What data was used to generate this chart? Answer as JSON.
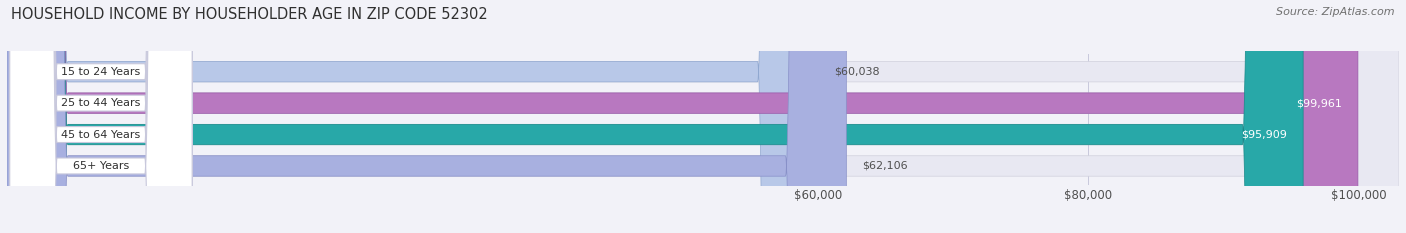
{
  "title": "HOUSEHOLD INCOME BY HOUSEHOLDER AGE IN ZIP CODE 52302",
  "source": "Source: ZipAtlas.com",
  "categories": [
    "15 to 24 Years",
    "25 to 44 Years",
    "45 to 64 Years",
    "65+ Years"
  ],
  "values": [
    60038,
    99961,
    95909,
    62106
  ],
  "bar_colors": [
    "#b8c8e8",
    "#b878c0",
    "#28a8a8",
    "#a8b0e0"
  ],
  "bar_edge_colors": [
    "#90a8d0",
    "#9858a8",
    "#188888",
    "#8890c8"
  ],
  "value_labels": [
    "$60,038",
    "$99,961",
    "$95,909",
    "$62,106"
  ],
  "xlim_min": 0,
  "xlim_max": 103000,
  "xticks": [
    60000,
    80000,
    100000
  ],
  "xtick_labels": [
    "$60,000",
    "$80,000",
    "$100,000"
  ],
  "background_color": "#f2f2f8",
  "bar_bg_color": "#e8e8f2",
  "bar_bg_edge_color": "#d0d0dc",
  "title_fontsize": 10.5,
  "source_fontsize": 8,
  "label_fontsize": 8,
  "tick_fontsize": 8.5,
  "pill_color": "#ffffff",
  "pill_edge_color": "#c8c8dc"
}
